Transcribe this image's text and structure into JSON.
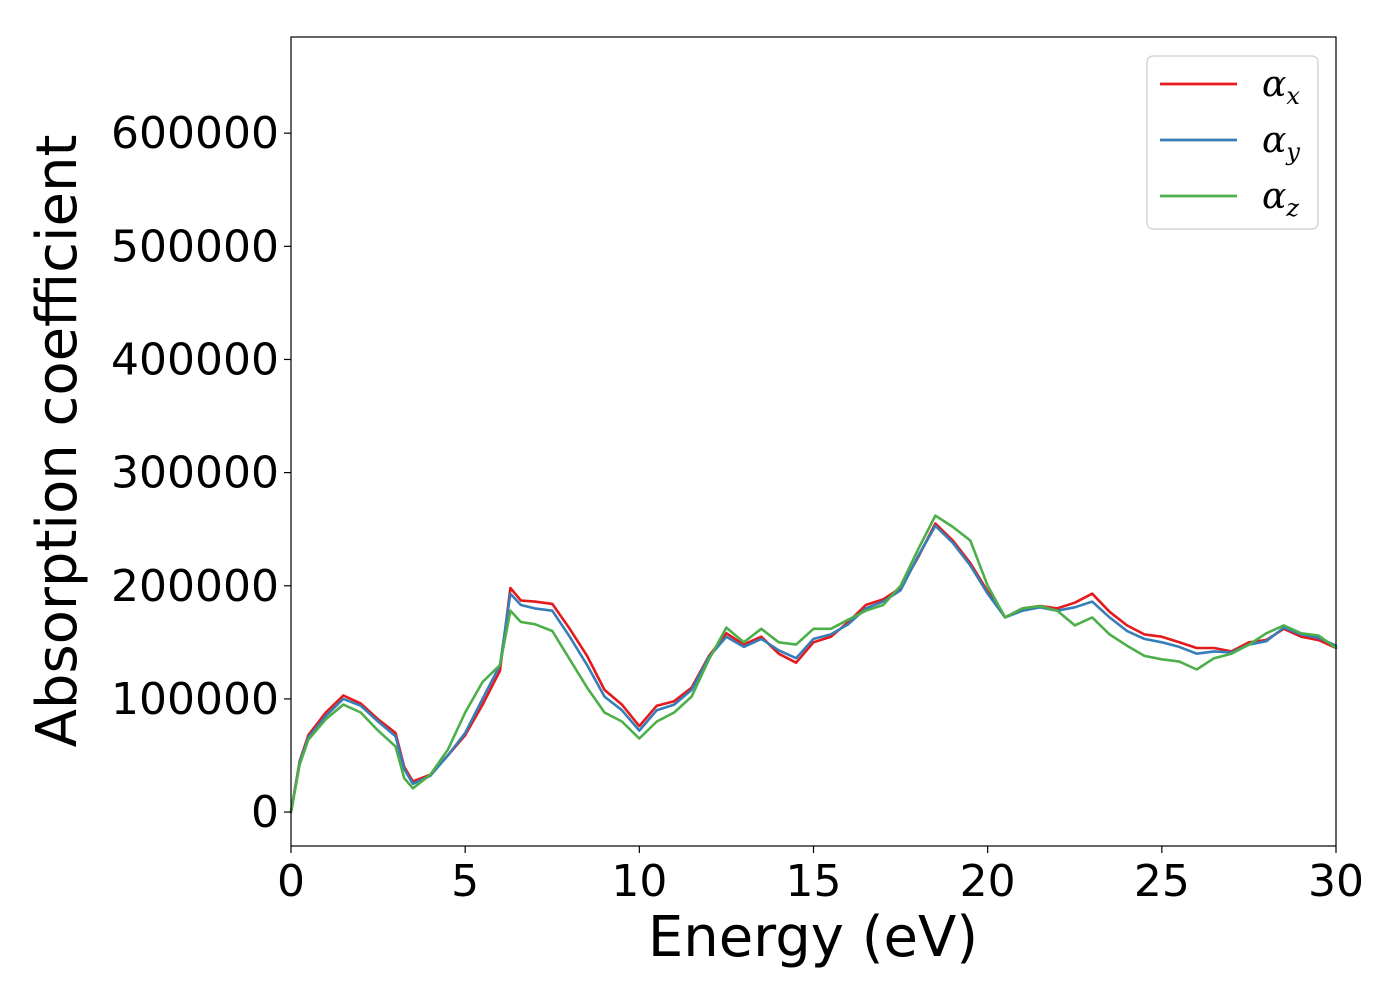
{
  "chart_data": {
    "type": "line",
    "title": "",
    "xlabel": "Energy (eV)",
    "ylabel": "Absorption coefficient",
    "xlim": [
      0,
      30
    ],
    "ylim": [
      -30000,
      685000
    ],
    "x_ticks": [
      0,
      5,
      10,
      15,
      20,
      25,
      30
    ],
    "y_ticks": [
      0,
      100000,
      200000,
      300000,
      400000,
      500000,
      600000
    ],
    "grid": false,
    "legend_position": "top-right",
    "series": [
      {
        "name": "α",
        "subscript": "x",
        "color": "#e41a1c",
        "x": [
          0,
          0.25,
          0.5,
          1.0,
          1.5,
          2.0,
          2.5,
          3.0,
          3.25,
          3.5,
          4.0,
          4.5,
          5.0,
          5.5,
          6.0,
          6.3,
          6.6,
          7.0,
          7.5,
          8.0,
          8.5,
          9.0,
          9.5,
          10.0,
          10.5,
          11.0,
          11.5,
          12.0,
          12.5,
          13.0,
          13.5,
          14.0,
          14.5,
          15.0,
          15.5,
          16.0,
          16.5,
          17.0,
          17.5,
          18.0,
          18.5,
          19.0,
          19.5,
          20.0,
          20.5,
          21.0,
          21.5,
          22.0,
          22.5,
          23.0,
          23.5,
          24.0,
          24.5,
          25.0,
          25.5,
          26.0,
          26.5,
          27.0,
          27.5,
          28.0,
          28.5,
          29.0,
          29.5,
          30.0
        ],
        "y": [
          0,
          45000,
          68000,
          88000,
          103000,
          96000,
          82000,
          70000,
          40000,
          27000,
          33000,
          50000,
          68000,
          95000,
          125000,
          198000,
          187000,
          186000,
          184000,
          162000,
          138000,
          108000,
          95000,
          76000,
          94000,
          98000,
          110000,
          138000,
          158000,
          148000,
          155000,
          140000,
          132000,
          150000,
          155000,
          168000,
          183000,
          188000,
          198000,
          225000,
          255000,
          240000,
          220000,
          195000,
          172000,
          180000,
          182000,
          180000,
          185000,
          193000,
          177000,
          165000,
          157000,
          155000,
          150000,
          145000,
          145000,
          142000,
          150000,
          152000,
          162000,
          155000,
          152000,
          145000
        ]
      },
      {
        "name": "α",
        "subscript": "y",
        "color": "#377eb8",
        "x": [
          0,
          0.25,
          0.5,
          1.0,
          1.5,
          2.0,
          2.5,
          3.0,
          3.25,
          3.5,
          4.0,
          4.5,
          5.0,
          5.5,
          6.0,
          6.3,
          6.6,
          7.0,
          7.5,
          8.0,
          8.5,
          9.0,
          9.5,
          10.0,
          10.5,
          11.0,
          11.5,
          12.0,
          12.5,
          13.0,
          13.5,
          14.0,
          14.5,
          15.0,
          15.5,
          16.0,
          16.5,
          17.0,
          17.5,
          18.0,
          18.5,
          19.0,
          19.5,
          20.0,
          20.5,
          21.0,
          21.5,
          22.0,
          22.5,
          23.0,
          23.5,
          24.0,
          24.5,
          25.0,
          25.5,
          26.0,
          26.5,
          27.0,
          27.5,
          28.0,
          28.5,
          29.0,
          29.5,
          30.0
        ],
        "y": [
          0,
          44000,
          66000,
          85000,
          100000,
          94000,
          80000,
          67000,
          38000,
          25000,
          32000,
          50000,
          70000,
          100000,
          130000,
          193000,
          183000,
          180000,
          178000,
          155000,
          130000,
          102000,
          90000,
          72000,
          90000,
          95000,
          108000,
          137000,
          155000,
          146000,
          153000,
          143000,
          136000,
          153000,
          157000,
          166000,
          180000,
          186000,
          196000,
          226000,
          253000,
          238000,
          218000,
          193000,
          172000,
          178000,
          181000,
          178000,
          181000,
          186000,
          172000,
          160000,
          153000,
          150000,
          146000,
          140000,
          142000,
          141000,
          148000,
          151000,
          163000,
          157000,
          154000,
          147000
        ]
      },
      {
        "name": "α",
        "subscript": "z",
        "color": "#4daf4a",
        "x": [
          0,
          0.25,
          0.5,
          1.0,
          1.5,
          2.0,
          2.5,
          3.0,
          3.25,
          3.5,
          4.0,
          4.5,
          5.0,
          5.5,
          6.0,
          6.3,
          6.6,
          7.0,
          7.5,
          8.0,
          8.5,
          9.0,
          9.5,
          10.0,
          10.5,
          11.0,
          11.5,
          12.0,
          12.5,
          13.0,
          13.5,
          14.0,
          14.5,
          15.0,
          15.5,
          16.0,
          16.5,
          17.0,
          17.5,
          18.0,
          18.5,
          19.0,
          19.5,
          20.0,
          20.5,
          21.0,
          21.5,
          22.0,
          22.5,
          23.0,
          23.5,
          24.0,
          24.5,
          25.0,
          25.5,
          26.0,
          26.5,
          27.0,
          27.5,
          28.0,
          28.5,
          29.0,
          29.5,
          30.0
        ],
        "y": [
          0,
          42000,
          64000,
          82000,
          95000,
          88000,
          72000,
          58000,
          30000,
          21000,
          33000,
          55000,
          88000,
          115000,
          130000,
          178000,
          168000,
          166000,
          160000,
          135000,
          110000,
          88000,
          80000,
          65000,
          80000,
          88000,
          102000,
          135000,
          163000,
          150000,
          162000,
          150000,
          148000,
          162000,
          162000,
          170000,
          178000,
          183000,
          200000,
          232000,
          262000,
          252000,
          240000,
          200000,
          172000,
          180000,
          182000,
          178000,
          165000,
          172000,
          157000,
          147000,
          138000,
          135000,
          133000,
          126000,
          136000,
          140000,
          148000,
          158000,
          165000,
          158000,
          156000,
          145000
        ]
      }
    ]
  }
}
